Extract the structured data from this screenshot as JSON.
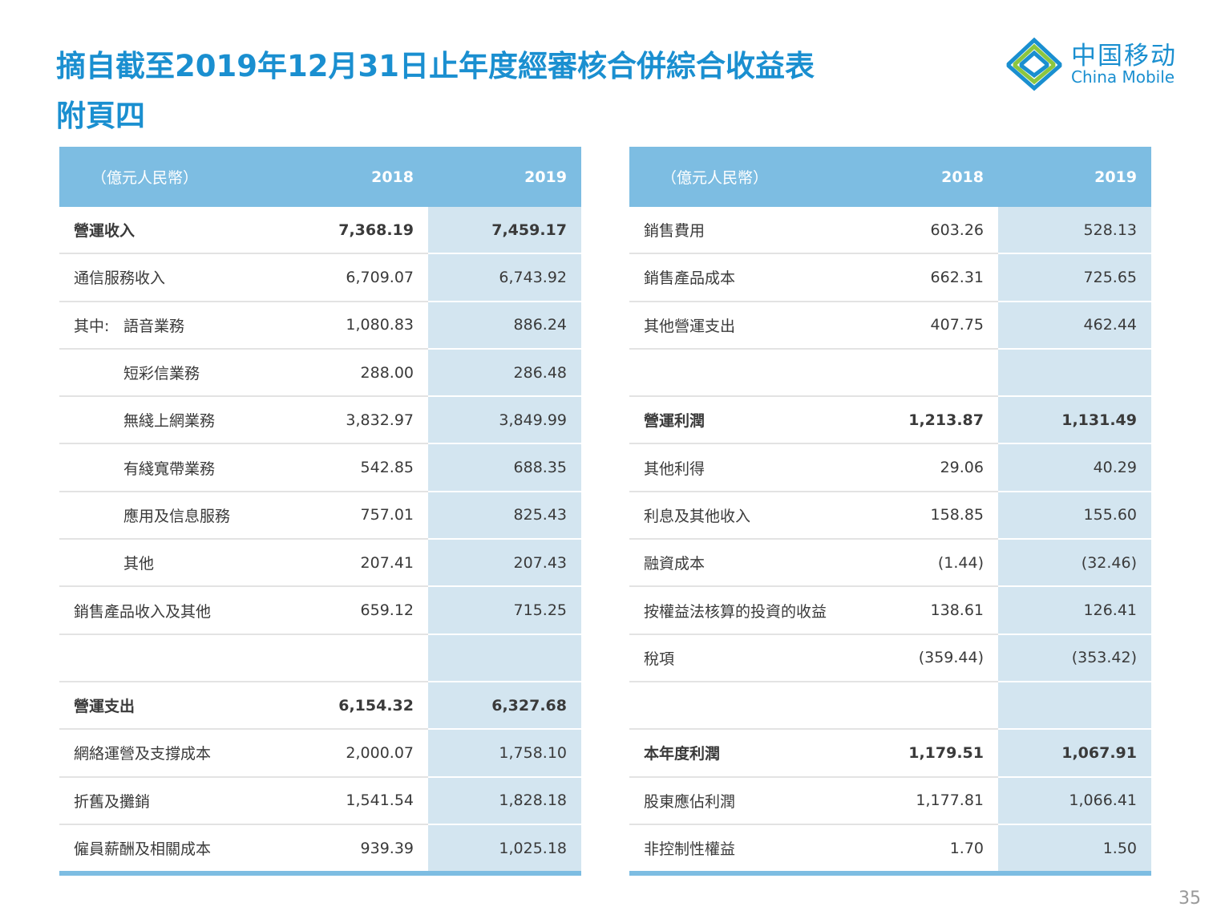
{
  "header": {
    "title_lines": [
      "摘自截至2019年12月31日止年度經審核合併綜合收益表",
      "附頁四"
    ],
    "logo_cn": "中国移动",
    "logo_en": "China Mobile"
  },
  "left_table": {
    "header": [
      "（億元人民幣）",
      "2018",
      "2019"
    ],
    "rows": [
      {
        "label": "營運收入",
        "v2018": "7,368.19",
        "v2019": "7,459.17",
        "bold": true
      },
      {
        "label": "通信服務收入",
        "v2018": "6,709.07",
        "v2019": "6,743.92"
      },
      {
        "prefix": "其中:",
        "label": "語音業務",
        "v2018": "1,080.83",
        "v2019": "886.24",
        "indent": true
      },
      {
        "label": "短彩信業務",
        "v2018": "288.00",
        "v2019": "286.48",
        "indent": true
      },
      {
        "label": "無綫上網業務",
        "v2018": "3,832.97",
        "v2019": "3,849.99",
        "indent": true
      },
      {
        "label": "有綫寬帶業務",
        "v2018": "542.85",
        "v2019": "688.35",
        "indent": true
      },
      {
        "label": "應用及信息服務",
        "v2018": "757.01",
        "v2019": "825.43",
        "indent": true
      },
      {
        "label": "其他",
        "v2018": "207.41",
        "v2019": "207.43",
        "indent": true
      },
      {
        "label": "銷售產品收入及其他",
        "v2018": "659.12",
        "v2019": "715.25"
      },
      null,
      {
        "label": "營運支出",
        "v2018": "6,154.32",
        "v2019": "6,327.68",
        "bold": true
      },
      {
        "label": "網絡運營及支撐成本",
        "v2018": "2,000.07",
        "v2019": "1,758.10"
      },
      {
        "label": "折舊及攤銷",
        "v2018": "1,541.54",
        "v2019": "1,828.18"
      },
      {
        "label": "僱員薪酬及相關成本",
        "v2018": "939.39",
        "v2019": "1,025.18"
      }
    ]
  },
  "right_table": {
    "header": [
      "（億元人民幣）",
      "2018",
      "2019"
    ],
    "rows": [
      {
        "label": "銷售費用",
        "v2018": "603.26",
        "v2019": "528.13"
      },
      {
        "label": "銷售產品成本",
        "v2018": "662.31",
        "v2019": "725.65"
      },
      {
        "label": "其他營運支出",
        "v2018": "407.75",
        "v2019": "462.44"
      },
      null,
      {
        "label": "營運利潤",
        "v2018": "1,213.87",
        "v2019": "1,131.49",
        "bold": true
      },
      {
        "label": "其他利得",
        "v2018": "29.06",
        "v2019": "40.29"
      },
      {
        "label": "利息及其他收入",
        "v2018": "158.85",
        "v2019": "155.60"
      },
      {
        "label": "融資成本",
        "v2018": "(1.44)",
        "v2019": "(32.46)"
      },
      {
        "label": "按權益法核算的投資的收益",
        "v2018": "138.61",
        "v2019": "126.41"
      },
      {
        "label": "稅項",
        "v2018": "(359.44)",
        "v2019": "(353.42)"
      },
      null,
      {
        "label": "本年度利潤",
        "v2018": "1,179.51",
        "v2019": "1,067.91",
        "bold": true
      },
      {
        "label": "股東應佔利潤",
        "v2018": "1,177.81",
        "v2019": "1,066.41"
      },
      {
        "label": "非控制性權益",
        "v2018": "1.70",
        "v2019": "1.50"
      }
    ]
  },
  "page_number": "35"
}
